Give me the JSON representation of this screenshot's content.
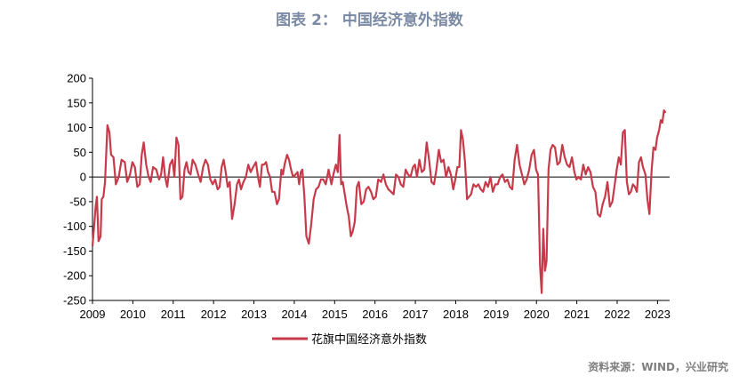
{
  "figure": {
    "title": "图表 2： 中国经济意外指数",
    "source": "资料来源：WIND，兴业研究"
  },
  "colors": {
    "series": "#c73a4a",
    "axis": "#000000",
    "title": "#7b8aa4",
    "source": "#7f7f7f"
  },
  "chart_data": {
    "type": "line",
    "ylim": [
      -250,
      200
    ],
    "yticks": [
      200,
      150,
      100,
      50,
      0,
      -50,
      -100,
      -150,
      -200,
      -250
    ],
    "xlim": [
      2009.0,
      2023.3
    ],
    "xticks": [
      "2009",
      "2010",
      "2011",
      "2012",
      "2013",
      "2014",
      "2015",
      "2016",
      "2017",
      "2018",
      "2019",
      "2020",
      "2021",
      "2022",
      "2023"
    ],
    "grid": false,
    "legend_position": "bottom",
    "series": [
      {
        "name": "花旗中国经济意外指数",
        "color": "#c73a4a",
        "points": [
          [
            2009.0,
            -140
          ],
          [
            2009.04,
            -100
          ],
          [
            2009.08,
            -60
          ],
          [
            2009.11,
            -40
          ],
          [
            2009.15,
            -130
          ],
          [
            2009.2,
            -120
          ],
          [
            2009.23,
            -45
          ],
          [
            2009.27,
            -40
          ],
          [
            2009.31,
            -10
          ],
          [
            2009.37,
            105
          ],
          [
            2009.42,
            90
          ],
          [
            2009.46,
            45
          ],
          [
            2009.52,
            40
          ],
          [
            2009.58,
            -15
          ],
          [
            2009.65,
            0
          ],
          [
            2009.72,
            35
          ],
          [
            2009.8,
            30
          ],
          [
            2009.86,
            -10
          ],
          [
            2009.93,
            5
          ],
          [
            2009.99,
            30
          ],
          [
            2010.05,
            20
          ],
          [
            2010.11,
            -20
          ],
          [
            2010.17,
            -15
          ],
          [
            2010.22,
            45
          ],
          [
            2010.27,
            70
          ],
          [
            2010.33,
            25
          ],
          [
            2010.39,
            0
          ],
          [
            2010.44,
            -10
          ],
          [
            2010.5,
            20
          ],
          [
            2010.58,
            15
          ],
          [
            2010.65,
            -5
          ],
          [
            2010.7,
            5
          ],
          [
            2010.75,
            40
          ],
          [
            2010.8,
            0
          ],
          [
            2010.85,
            -20
          ],
          [
            2010.92,
            25
          ],
          [
            2010.98,
            35
          ],
          [
            2011.03,
            0
          ],
          [
            2011.08,
            80
          ],
          [
            2011.13,
            65
          ],
          [
            2011.18,
            -45
          ],
          [
            2011.23,
            -40
          ],
          [
            2011.28,
            15
          ],
          [
            2011.33,
            30
          ],
          [
            2011.38,
            10
          ],
          [
            2011.43,
            5
          ],
          [
            2011.48,
            35
          ],
          [
            2011.55,
            25
          ],
          [
            2011.62,
            5
          ],
          [
            2011.68,
            -10
          ],
          [
            2011.74,
            20
          ],
          [
            2011.8,
            35
          ],
          [
            2011.86,
            25
          ],
          [
            2011.92,
            -5
          ],
          [
            2011.98,
            -15
          ],
          [
            2012.04,
            -5
          ],
          [
            2012.1,
            -25
          ],
          [
            2012.15,
            -20
          ],
          [
            2012.2,
            20
          ],
          [
            2012.25,
            35
          ],
          [
            2012.3,
            10
          ],
          [
            2012.35,
            -20
          ],
          [
            2012.4,
            -10
          ],
          [
            2012.46,
            -85
          ],
          [
            2012.52,
            -55
          ],
          [
            2012.58,
            -15
          ],
          [
            2012.63,
            -5
          ],
          [
            2012.68,
            -25
          ],
          [
            2012.74,
            -10
          ],
          [
            2012.8,
            0
          ],
          [
            2012.86,
            25
          ],
          [
            2012.92,
            10
          ],
          [
            2012.98,
            20
          ],
          [
            2013.05,
            30
          ],
          [
            2013.1,
            0
          ],
          [
            2013.15,
            -20
          ],
          [
            2013.2,
            25
          ],
          [
            2013.25,
            25
          ],
          [
            2013.3,
            30
          ],
          [
            2013.35,
            10
          ],
          [
            2013.4,
            0
          ],
          [
            2013.45,
            -30
          ],
          [
            2013.51,
            -30
          ],
          [
            2013.57,
            -55
          ],
          [
            2013.62,
            -45
          ],
          [
            2013.68,
            15
          ],
          [
            2013.72,
            5
          ],
          [
            2013.76,
            25
          ],
          [
            2013.82,
            45
          ],
          [
            2013.87,
            35
          ],
          [
            2013.92,
            15
          ],
          [
            2013.97,
            0
          ],
          [
            2014.03,
            5
          ],
          [
            2014.08,
            10
          ],
          [
            2014.12,
            -15
          ],
          [
            2014.16,
            10
          ],
          [
            2014.2,
            15
          ],
          [
            2014.25,
            -40
          ],
          [
            2014.3,
            -120
          ],
          [
            2014.36,
            -135
          ],
          [
            2014.42,
            -95
          ],
          [
            2014.48,
            -45
          ],
          [
            2014.54,
            -25
          ],
          [
            2014.6,
            -20
          ],
          [
            2014.66,
            -5
          ],
          [
            2014.72,
            -5
          ],
          [
            2014.78,
            -15
          ],
          [
            2014.85,
            15
          ],
          [
            2014.92,
            -15
          ],
          [
            2014.97,
            5
          ],
          [
            2015.03,
            25
          ],
          [
            2015.08,
            10
          ],
          [
            2015.12,
            85
          ],
          [
            2015.16,
            -15
          ],
          [
            2015.2,
            -10
          ],
          [
            2015.25,
            -35
          ],
          [
            2015.3,
            -60
          ],
          [
            2015.35,
            -80
          ],
          [
            2015.4,
            -120
          ],
          [
            2015.45,
            -110
          ],
          [
            2015.5,
            -90
          ],
          [
            2015.55,
            -20
          ],
          [
            2015.6,
            -10
          ],
          [
            2015.66,
            -55
          ],
          [
            2015.72,
            -50
          ],
          [
            2015.78,
            -25
          ],
          [
            2015.84,
            -20
          ],
          [
            2015.9,
            -30
          ],
          [
            2015.96,
            -45
          ],
          [
            2016.02,
            -40
          ],
          [
            2016.08,
            -5
          ],
          [
            2016.15,
            -10
          ],
          [
            2016.21,
            5
          ],
          [
            2016.27,
            -15
          ],
          [
            2016.33,
            -25
          ],
          [
            2016.4,
            -30
          ],
          [
            2016.46,
            -35
          ],
          [
            2016.52,
            5
          ],
          [
            2016.58,
            0
          ],
          [
            2016.64,
            -15
          ],
          [
            2016.7,
            -20
          ],
          [
            2016.76,
            15
          ],
          [
            2016.82,
            5
          ],
          [
            2016.88,
            0
          ],
          [
            2016.94,
            20
          ],
          [
            2016.99,
            25
          ],
          [
            2017.04,
            0
          ],
          [
            2017.1,
            35
          ],
          [
            2017.16,
            10
          ],
          [
            2017.22,
            15
          ],
          [
            2017.28,
            70
          ],
          [
            2017.34,
            35
          ],
          [
            2017.4,
            -10
          ],
          [
            2017.46,
            -15
          ],
          [
            2017.52,
            15
          ],
          [
            2017.58,
            55
          ],
          [
            2017.64,
            30
          ],
          [
            2017.7,
            35
          ],
          [
            2017.76,
            0
          ],
          [
            2017.82,
            20
          ],
          [
            2017.88,
            5
          ],
          [
            2017.94,
            -25
          ],
          [
            2017.99,
            -5
          ],
          [
            2018.04,
            20
          ],
          [
            2018.09,
            20
          ],
          [
            2018.13,
            95
          ],
          [
            2018.18,
            75
          ],
          [
            2018.23,
            30
          ],
          [
            2018.28,
            -45
          ],
          [
            2018.33,
            -40
          ],
          [
            2018.38,
            -35
          ],
          [
            2018.44,
            -15
          ],
          [
            2018.5,
            -20
          ],
          [
            2018.56,
            -15
          ],
          [
            2018.62,
            -25
          ],
          [
            2018.68,
            -30
          ],
          [
            2018.74,
            -10
          ],
          [
            2018.8,
            -20
          ],
          [
            2018.86,
            0
          ],
          [
            2018.92,
            -30
          ],
          [
            2018.98,
            -15
          ],
          [
            2019.04,
            -15
          ],
          [
            2019.1,
            0
          ],
          [
            2019.16,
            5
          ],
          [
            2019.22,
            -10
          ],
          [
            2019.28,
            -5
          ],
          [
            2019.34,
            -20
          ],
          [
            2019.4,
            -25
          ],
          [
            2019.46,
            35
          ],
          [
            2019.52,
            65
          ],
          [
            2019.58,
            25
          ],
          [
            2019.64,
            5
          ],
          [
            2019.7,
            -15
          ],
          [
            2019.76,
            -5
          ],
          [
            2019.82,
            15
          ],
          [
            2019.88,
            45
          ],
          [
            2019.94,
            55
          ],
          [
            2019.99,
            15
          ],
          [
            2020.04,
            5
          ],
          [
            2020.09,
            -180
          ],
          [
            2020.13,
            -235
          ],
          [
            2020.17,
            -105
          ],
          [
            2020.21,
            -190
          ],
          [
            2020.25,
            -170
          ],
          [
            2020.3,
            15
          ],
          [
            2020.35,
            55
          ],
          [
            2020.4,
            65
          ],
          [
            2020.46,
            60
          ],
          [
            2020.52,
            25
          ],
          [
            2020.58,
            30
          ],
          [
            2020.64,
            65
          ],
          [
            2020.7,
            40
          ],
          [
            2020.76,
            25
          ],
          [
            2020.82,
            20
          ],
          [
            2020.88,
            40
          ],
          [
            2020.94,
            10
          ],
          [
            2020.99,
            -5
          ],
          [
            2021.04,
            0
          ],
          [
            2021.1,
            -5
          ],
          [
            2021.16,
            25
          ],
          [
            2021.22,
            5
          ],
          [
            2021.28,
            20
          ],
          [
            2021.34,
            10
          ],
          [
            2021.4,
            -20
          ],
          [
            2021.46,
            -30
          ],
          [
            2021.52,
            -75
          ],
          [
            2021.58,
            -80
          ],
          [
            2021.64,
            -55
          ],
          [
            2021.7,
            -40
          ],
          [
            2021.76,
            -10
          ],
          [
            2021.82,
            -60
          ],
          [
            2021.88,
            -50
          ],
          [
            2021.94,
            -15
          ],
          [
            2021.99,
            15
          ],
          [
            2022.04,
            40
          ],
          [
            2022.09,
            25
          ],
          [
            2022.14,
            90
          ],
          [
            2022.19,
            95
          ],
          [
            2022.24,
            -10
          ],
          [
            2022.29,
            -35
          ],
          [
            2022.34,
            -30
          ],
          [
            2022.39,
            -15
          ],
          [
            2022.44,
            -20
          ],
          [
            2022.49,
            -30
          ],
          [
            2022.54,
            30
          ],
          [
            2022.59,
            40
          ],
          [
            2022.64,
            20
          ],
          [
            2022.7,
            5
          ],
          [
            2022.75,
            -45
          ],
          [
            2022.8,
            -75
          ],
          [
            2022.85,
            10
          ],
          [
            2022.9,
            60
          ],
          [
            2022.95,
            55
          ],
          [
            2022.99,
            80
          ],
          [
            2023.04,
            95
          ],
          [
            2023.08,
            115
          ],
          [
            2023.12,
            110
          ],
          [
            2023.16,
            135
          ],
          [
            2023.2,
            130
          ]
        ]
      }
    ]
  }
}
